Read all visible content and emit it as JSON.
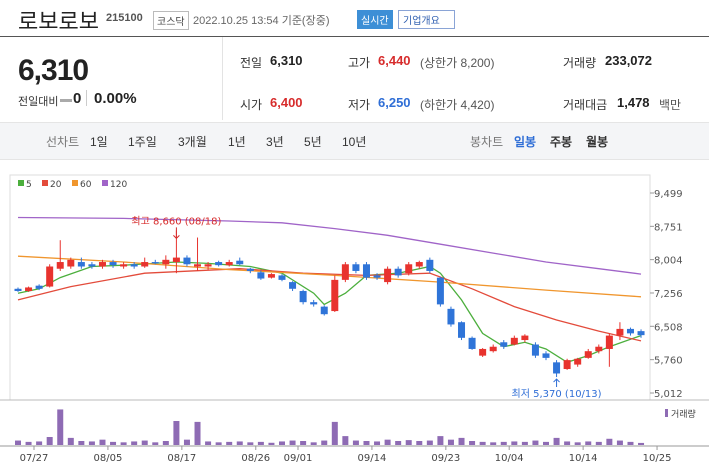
{
  "header": {
    "name": "로보로보",
    "code": "215100",
    "market": "코스닥",
    "timestamp": "2022.10.25 13:54 기준(장중)",
    "realtime": "실시간",
    "overview": "기업개요"
  },
  "quote": {
    "price": "6,310",
    "change_label": "전일대비",
    "change": "0",
    "change_pct": "0.00%",
    "items": [
      {
        "label": "전일",
        "value": "6,310",
        "color": "#222222"
      },
      {
        "label": "고가",
        "value": "6,440",
        "note": "(상한가 8,200)",
        "color": "#d72c2c"
      },
      {
        "label": "거래량",
        "value": "233,072",
        "color": "#222222"
      },
      {
        "label": "시가",
        "value": "6,400",
        "color": "#d72c2c"
      },
      {
        "label": "저가",
        "value": "6,250",
        "note": "(하한가 4,420)",
        "color": "#2f6ed6"
      },
      {
        "label": "거래대금",
        "value": "1,478",
        "note": "백만",
        "color": "#222222"
      }
    ]
  },
  "periods": {
    "line_label": "선차트",
    "line": [
      "1일",
      "1주일",
      "3개월",
      "1년",
      "3년",
      "5년",
      "10년"
    ],
    "candle_label": "봉차트",
    "candle": [
      "일봉",
      "주봉",
      "월봉"
    ]
  },
  "chart_data": {
    "type": "candlestick",
    "categories": [
      "07/27",
      null,
      null,
      null,
      null,
      null,
      null,
      "08/05",
      null,
      null,
      null,
      null,
      null,
      null,
      "08/17",
      null,
      null,
      null,
      null,
      null,
      null,
      "08/26",
      null,
      null,
      null,
      "09/01",
      null,
      null,
      null,
      null,
      null,
      null,
      "09/14",
      null,
      null,
      null,
      null,
      null,
      null,
      "09/23",
      null,
      null,
      null,
      null,
      null,
      "10/04",
      null,
      null,
      null,
      null,
      null,
      null,
      "10/14",
      null,
      null,
      null,
      null,
      null,
      null,
      "10/25"
    ],
    "open": [
      7350,
      7300,
      7420,
      7400,
      7800,
      7850,
      7950,
      7900,
      7850,
      7950,
      7850,
      7900,
      7850,
      7950,
      7900,
      7950,
      8050,
      7850,
      7850,
      7950,
      7880,
      7980,
      7800,
      7720,
      7600,
      7650,
      7500,
      7300,
      7050,
      6950,
      6850,
      7550,
      7900,
      7900,
      7650,
      7500,
      7800,
      7700,
      7850,
      8000,
      7600,
      6900,
      6600,
      6250,
      5850,
      5950,
      6150,
      6100,
      6200,
      6100,
      5900,
      5700,
      5550,
      5650,
      5800,
      5950,
      6000,
      6300,
      6450,
      6400
    ],
    "high": [
      7380,
      7400,
      7450,
      7900,
      8440,
      8050,
      8050,
      7950,
      8000,
      8000,
      7950,
      7950,
      8050,
      8000,
      8100,
      8660,
      8100,
      8500,
      7950,
      7980,
      8000,
      8050,
      7820,
      7760,
      7700,
      7680,
      7520,
      7330,
      7100,
      6980,
      7650,
      7950,
      7950,
      7950,
      7700,
      7850,
      7850,
      7950,
      7980,
      8050,
      7620,
      6950,
      6620,
      6280,
      6020,
      6100,
      6200,
      6300,
      6330,
      6150,
      5950,
      5750,
      5780,
      5800,
      6000,
      6100,
      6350,
      6600,
      6480,
      6440
    ],
    "low": [
      7280,
      7280,
      7320,
      7380,
      7750,
      7800,
      7800,
      7800,
      7800,
      7820,
      7800,
      7800,
      7820,
      7900,
      7800,
      7700,
      7850,
      7750,
      7780,
      7850,
      7850,
      7880,
      7700,
      7550,
      7580,
      7520,
      7300,
      7000,
      6950,
      6750,
      6830,
      7500,
      7700,
      7550,
      7550,
      7450,
      7600,
      7650,
      7800,
      7700,
      6950,
      6500,
      6200,
      5980,
      5820,
      5920,
      6000,
      6080,
      6150,
      5800,
      5750,
      5370,
      5530,
      5600,
      5780,
      5900,
      5600,
      6200,
      6300,
      6250
    ],
    "close": [
      7300,
      7380,
      7350,
      7850,
      7950,
      8000,
      7850,
      7850,
      7950,
      7880,
      7900,
      7850,
      7950,
      7920,
      8000,
      8050,
      7900,
      7900,
      7900,
      7880,
      7950,
      7900,
      7750,
      7580,
      7680,
      7550,
      7350,
      7050,
      7000,
      6780,
      7550,
      7900,
      7750,
      7600,
      7600,
      7800,
      7650,
      7900,
      7950,
      7750,
      7000,
      6550,
      6250,
      6000,
      6000,
      6050,
      6050,
      6250,
      6300,
      5850,
      5800,
      5450,
      5750,
      5780,
      5950,
      6050,
      6300,
      6450,
      6350,
      6310
    ],
    "volume": [
      500000,
      350000,
      400000,
      900000,
      4000000,
      800000,
      450000,
      400000,
      600000,
      350000,
      300000,
      400000,
      500000,
      300000,
      450000,
      2700000,
      600000,
      2600000,
      400000,
      300000,
      350000,
      400000,
      300000,
      350000,
      250000,
      400000,
      500000,
      450000,
      300000,
      500000,
      2600000,
      1000000,
      500000,
      450000,
      400000,
      600000,
      450000,
      550000,
      450000,
      500000,
      1000000,
      600000,
      800000,
      450000,
      350000,
      300000,
      350000,
      400000,
      350000,
      500000,
      350000,
      800000,
      400000,
      300000,
      400000,
      350000,
      700000,
      500000,
      350000,
      233072
    ],
    "volume_lim": [
      0,
      4500000
    ],
    "volume_name": "거래량",
    "volume_color": "#8e6bb4",
    "ylim": [
      5012,
      9499
    ],
    "yticks": [
      {
        "value": 9499,
        "label": "9,499"
      },
      {
        "value": 8751,
        "label": "8,751"
      },
      {
        "value": 8004,
        "label": "8,004"
      },
      {
        "value": 7256,
        "label": "7,256"
      },
      {
        "value": 6508,
        "label": "6,508"
      },
      {
        "value": 5760,
        "label": "5,760"
      },
      {
        "value": 5012,
        "label": "5,012"
      }
    ],
    "up_color": "#e8332e",
    "down_color": "#2f74d8",
    "series": [
      {
        "name": "5",
        "color": "#4caf3d",
        "x": [
          0,
          2,
          4,
          7,
          10,
          15,
          18,
          22,
          25,
          28,
          29,
          31,
          33,
          36,
          39,
          40,
          42,
          44,
          46,
          48,
          50,
          52,
          54,
          56,
          59
        ],
        "values": [
          7250,
          7350,
          7600,
          7850,
          7880,
          7950,
          7920,
          7850,
          7700,
          7250,
          7000,
          7250,
          7650,
          7700,
          7850,
          7700,
          7100,
          6350,
          6050,
          6150,
          6000,
          5700,
          5850,
          6050,
          6300
        ]
      },
      {
        "name": "20",
        "color": "#e34b3b",
        "x": [
          0,
          5,
          12,
          21,
          27,
          33,
          39,
          43,
          47,
          51,
          55,
          59
        ],
        "values": [
          7100,
          7400,
          7700,
          7800,
          7700,
          7650,
          7700,
          7350,
          6950,
          6650,
          6400,
          6180
        ]
      },
      {
        "name": "60",
        "color": "#f0962e",
        "x": [
          0,
          10,
          20,
          30,
          40,
          50,
          59
        ],
        "values": [
          8080,
          7950,
          7780,
          7650,
          7500,
          7320,
          7170
        ]
      },
      {
        "name": "120",
        "color": "#a064c8",
        "x": [
          0,
          10,
          20,
          25,
          30,
          35,
          40,
          45,
          50,
          55,
          59
        ],
        "values": [
          8950,
          8930,
          8870,
          8830,
          8700,
          8550,
          8350,
          8150,
          7950,
          7800,
          7680
        ]
      }
    ],
    "annotations": [
      {
        "text": "최고 8,660 (08/18)",
        "color": "#d72c2c"
      },
      {
        "text": "최저 5,370 (10/13)",
        "color": "#2f6ed6"
      }
    ]
  }
}
